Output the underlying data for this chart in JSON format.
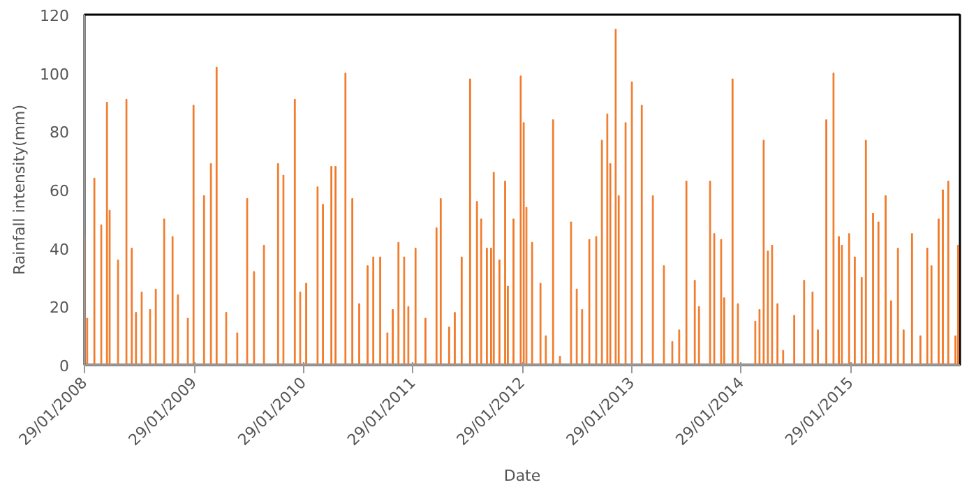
{
  "chart_data": {
    "type": "bar",
    "xlabel": "Date",
    "ylabel": "Rainfall intensity(mm)",
    "color": "#f07a2a",
    "grid": false,
    "x": [
      "2008-01-29",
      "2008-02-07",
      "2008-03-02",
      "2008-03-25",
      "2008-04-13",
      "2008-04-22",
      "2008-05-20",
      "2008-06-17",
      "2008-07-05",
      "2008-07-19",
      "2008-08-07",
      "2008-09-04",
      "2008-09-23",
      "2008-10-21",
      "2008-11-18",
      "2008-12-06",
      "2009-01-08",
      "2009-01-27",
      "2009-03-03",
      "2009-03-26",
      "2009-04-14",
      "2009-05-16",
      "2009-06-22",
      "2009-07-25",
      "2009-08-17",
      "2009-09-19",
      "2009-11-05",
      "2009-11-23",
      "2009-12-31",
      "2010-01-18",
      "2010-02-07",
      "2010-03-17",
      "2010-04-04",
      "2010-05-02",
      "2010-05-16",
      "2010-06-18",
      "2010-07-11",
      "2010-08-03",
      "2010-08-31",
      "2010-09-19",
      "2010-10-12",
      "2010-11-05",
      "2010-11-23",
      "2010-12-12",
      "2010-12-31",
      "2011-01-14",
      "2011-02-07",
      "2011-03-12",
      "2011-04-18",
      "2011-05-02",
      "2011-05-30",
      "2011-06-18",
      "2011-07-11",
      "2011-08-08",
      "2011-08-31",
      "2011-09-14",
      "2011-10-03",
      "2011-10-17",
      "2011-10-26",
      "2011-11-14",
      "2011-12-03",
      "2011-12-12",
      "2011-12-31",
      "2012-01-24",
      "2012-02-03",
      "2012-02-12",
      "2012-03-02",
      "2012-03-30",
      "2012-04-17",
      "2012-05-11",
      "2012-06-03",
      "2012-07-10",
      "2012-07-29",
      "2012-08-16",
      "2012-09-09",
      "2012-10-02",
      "2012-10-21",
      "2012-11-08",
      "2012-11-18",
      "2012-12-06",
      "2012-12-16",
      "2013-01-08",
      "2013-01-29",
      "2013-03-03",
      "2013-04-09",
      "2013-05-16",
      "2013-06-13",
      "2013-07-06",
      "2013-07-30",
      "2013-08-27",
      "2013-09-10",
      "2013-10-17",
      "2013-10-31",
      "2013-11-23",
      "2013-12-03",
      "2013-12-31",
      "2014-01-18",
      "2014-03-17",
      "2014-03-31",
      "2014-04-14",
      "2014-04-28",
      "2014-05-12",
      "2014-05-30",
      "2014-06-18",
      "2014-07-25",
      "2014-08-27",
      "2014-09-24",
      "2014-10-12",
      "2014-11-09",
      "2014-12-03",
      "2014-12-21",
      "2014-12-31",
      "2015-01-24",
      "2015-02-12",
      "2015-03-07",
      "2015-03-21",
      "2015-04-14",
      "2015-05-02",
      "2015-05-26",
      "2015-06-13",
      "2015-07-06",
      "2015-07-25",
      "2015-08-22",
      "2015-09-19",
      "2015-10-12",
      "2015-10-26",
      "2015-11-19",
      "2015-12-03",
      "2015-12-21",
      "2016-01-14",
      "2016-01-23"
    ],
    "values": [
      44,
      16,
      64,
      48,
      90,
      53,
      36,
      91,
      40,
      18,
      25,
      19,
      26,
      50,
      44,
      24,
      16,
      89,
      58,
      69,
      102,
      18,
      11,
      57,
      32,
      41,
      69,
      65,
      91,
      25,
      28,
      61,
      55,
      68,
      68,
      100,
      57,
      21,
      34,
      37,
      37,
      11,
      19,
      42,
      37,
      20,
      40,
      16,
      47,
      57,
      13,
      18,
      37,
      98,
      56,
      50,
      40,
      40,
      66,
      36,
      63,
      27,
      50,
      99,
      83,
      54,
      42,
      28,
      10,
      84,
      3,
      49,
      26,
      19,
      43,
      44,
      77,
      86,
      69,
      115,
      58,
      83,
      97,
      89,
      58,
      34,
      8,
      12,
      63,
      29,
      20,
      63,
      45,
      43,
      23,
      98,
      21,
      15,
      19,
      77,
      39,
      41,
      21,
      5,
      17,
      29,
      25,
      12,
      84,
      100,
      44,
      41,
      45,
      37,
      30,
      77,
      52,
      49,
      58,
      22,
      40,
      12,
      45,
      10,
      40,
      34,
      50,
      60,
      63,
      10,
      41
    ],
    "xlim": [
      "2008-01-29",
      "2016-01-29"
    ],
    "xticks": [
      {
        "value": "2008-01-29",
        "label": "29/01/2008"
      },
      {
        "value": "2009-01-29",
        "label": "29/01/2009"
      },
      {
        "value": "2010-01-29",
        "label": "29/01/2010"
      },
      {
        "value": "2011-01-29",
        "label": "29/01/2011"
      },
      {
        "value": "2012-01-29",
        "label": "29/01/2012"
      },
      {
        "value": "2013-01-29",
        "label": "29/01/2013"
      },
      {
        "value": "2014-01-29",
        "label": "29/01/2014"
      },
      {
        "value": "2015-01-29",
        "label": "29/01/2015"
      }
    ],
    "ylim": [
      0,
      120
    ],
    "yticks": [
      0,
      20,
      40,
      60,
      80,
      100,
      120
    ]
  }
}
